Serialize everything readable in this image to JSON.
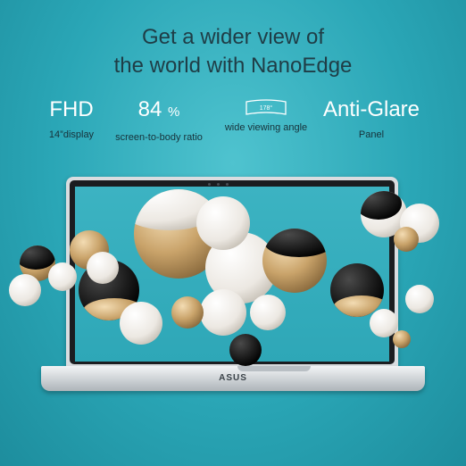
{
  "headline": {
    "line1": "Get a wider view of",
    "line2": "the world with NanoEdge"
  },
  "features": {
    "fhd": {
      "value": "FHD",
      "caption": "14”display"
    },
    "ratio": {
      "value": "84",
      "unit": "%",
      "caption": "screen-to-body ratio"
    },
    "angle": {
      "icon_label": "178°",
      "caption": "wide viewing angle",
      "icon": "viewing-angle-icon"
    },
    "panel": {
      "value": "Anti-Glare",
      "caption": "Panel"
    }
  },
  "laptop": {
    "brand_logo": "ASUS"
  },
  "colors": {
    "background": "#2aa6b6",
    "headline_text": "#1f3d46",
    "feature_value": "#ffffff",
    "sphere_gold": "#c9a36a",
    "sphere_black": "#1c1c1c",
    "sphere_white": "#f2f0ec"
  }
}
